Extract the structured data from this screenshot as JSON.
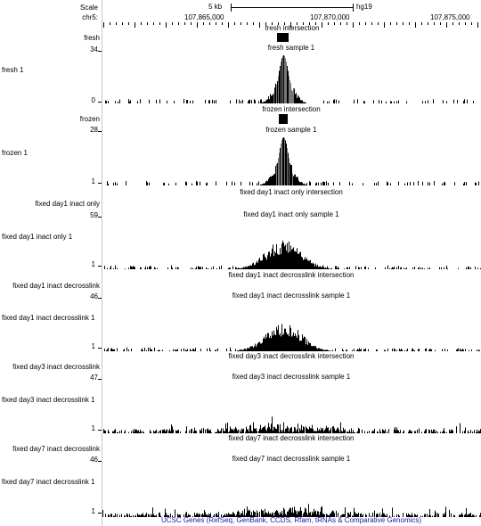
{
  "header": {
    "scale_label": "Scale",
    "chrom_label": "chr5:",
    "scale_value": "5 kb",
    "assembly": "hg19",
    "positions": [
      "107,865,000",
      "107,870,000",
      "107,875,000"
    ]
  },
  "tracks": [
    {
      "id": "fresh",
      "short": "fresh",
      "max": "34",
      "long": "fresh 1",
      "min": "0",
      "intersection": "fresh intersection",
      "sample": "fresh sample 1",
      "profile": "peak"
    },
    {
      "id": "frozen",
      "short": "frozen",
      "max": "28",
      "long": "frozen 1",
      "min": "1",
      "intersection": "frozen intersection",
      "sample": "frozen sample 1",
      "profile": "peak"
    },
    {
      "id": "fixed-day1-inact-only",
      "short": "fixed day1 inact only",
      "max": "59",
      "long": "fixed day1 inact only 1",
      "min": "1",
      "intersection": "fixed day1 inact only intersection",
      "sample": "fixed day1 inact only sample 1",
      "profile": "broad"
    },
    {
      "id": "fixed-day1-inact-decrosslink",
      "short": "fixed day1 inact decrosslink",
      "max": "46",
      "long": "fixed day1 inact decrosslink 1",
      "min": "1",
      "intersection": "fixed day1 inact decrosslink intersection",
      "sample": "fixed day1 inact decrosslink sample 1",
      "profile": "broad"
    },
    {
      "id": "fixed-day3-inact-decrosslink",
      "short": "fixed day3 inact decrosslink",
      "max": "47",
      "long": "fixed day3 inact decrosslink 1",
      "min": "1",
      "intersection": "fixed day3 inact decrosslink intersection",
      "sample": "fixed day3 inact decrosslink sample 1",
      "profile": "flat"
    },
    {
      "id": "fixed-day7-inact-decrosslink",
      "short": "fixed day7 inact decrosslink",
      "max": "46",
      "long": "fixed day7 inact decrosslink 1",
      "min": "1",
      "intersection": "fixed day7 inact decrosslink intersection",
      "sample": "fixed day7 inact decrosslink sample 1",
      "profile": "flat"
    }
  ],
  "genes_label": "UCSC Genes (RefSeq, GenBank, CCDS, Rfam, tRNAs & Comparative Genomics)",
  "colors": {
    "signal": "#000000",
    "overlay": "#777777",
    "genes_link": "#1a1aa8"
  }
}
